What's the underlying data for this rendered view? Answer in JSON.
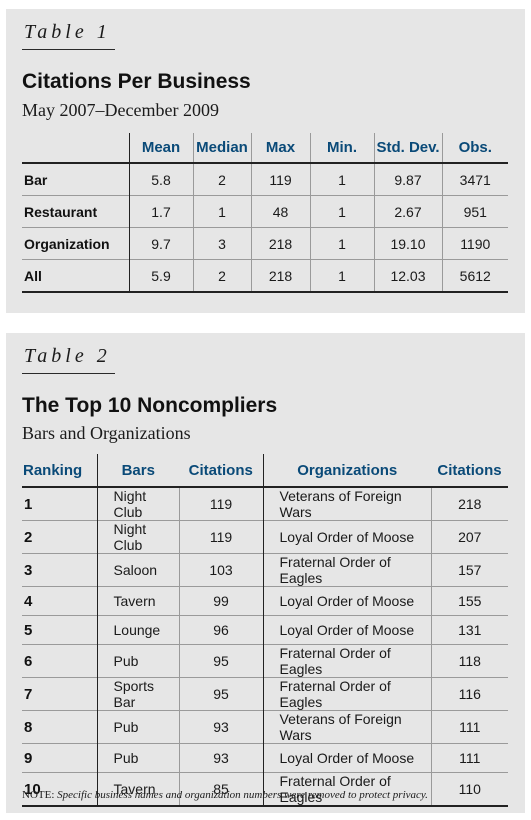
{
  "table1": {
    "label": "Table 1",
    "title": "Citations Per Business",
    "subtitle": "May 2007–December 2009",
    "headers": [
      "Mean",
      "Median",
      "Max",
      "Min.",
      "Std. Dev.",
      "Obs."
    ],
    "rows": [
      {
        "label": "Bar",
        "values": [
          "5.8",
          "2",
          "119",
          "1",
          "9.87",
          "3471"
        ]
      },
      {
        "label": "Restaurant",
        "values": [
          "1.7",
          "1",
          "48",
          "1",
          "2.67",
          "951"
        ]
      },
      {
        "label": "Organization",
        "values": [
          "9.7",
          "3",
          "218",
          "1",
          "19.10",
          "1190"
        ]
      },
      {
        "label": "All",
        "values": [
          "5.9",
          "2",
          "218",
          "1",
          "12.03",
          "5612"
        ]
      }
    ]
  },
  "table2": {
    "label": "Table 2",
    "title": "The Top 10 Noncompliers",
    "subtitle": "Bars and Organizations",
    "headers": [
      "Ranking",
      "Bars",
      "Citations",
      "Organizations",
      "Citations"
    ],
    "rows": [
      {
        "rank": "1",
        "bar": "Night Club",
        "bar_citations": "119",
        "org": "Veterans of Foreign Wars",
        "org_citations": "218"
      },
      {
        "rank": "2",
        "bar": "Night Club",
        "bar_citations": "119",
        "org": "Loyal Order of Moose",
        "org_citations": "207"
      },
      {
        "rank": "3",
        "bar": "Saloon",
        "bar_citations": "103",
        "org": "Fraternal Order of Eagles",
        "org_citations": "157"
      },
      {
        "rank": "4",
        "bar": "Tavern",
        "bar_citations": "99",
        "org": "Loyal Order of Moose",
        "org_citations": "155"
      },
      {
        "rank": "5",
        "bar": "Lounge",
        "bar_citations": "96",
        "org": "Loyal Order of Moose",
        "org_citations": "131"
      },
      {
        "rank": "6",
        "bar": "Pub",
        "bar_citations": "95",
        "org": "Fraternal Order of Eagles",
        "org_citations": "118"
      },
      {
        "rank": "7",
        "bar": "Sports Bar",
        "bar_citations": "95",
        "org": "Fraternal Order of Eagles",
        "org_citations": "116"
      },
      {
        "rank": "8",
        "bar": "Pub",
        "bar_citations": "93",
        "org": "Veterans of Foreign Wars",
        "org_citations": "111"
      },
      {
        "rank": "9",
        "bar": "Pub",
        "bar_citations": "93",
        "org": "Loyal Order of Moose",
        "org_citations": "111"
      },
      {
        "rank": "10",
        "bar": "Tavern",
        "bar_citations": "85",
        "org": "Fraternal Order of Eagles",
        "org_citations": "110"
      }
    ],
    "note_prefix": "NOTE:",
    "note_text": "Specific business names and organization numbers were removed to protect privacy."
  },
  "colors": {
    "header_blue": "#0a4a78",
    "panel_gray": "#e6e6e6"
  }
}
